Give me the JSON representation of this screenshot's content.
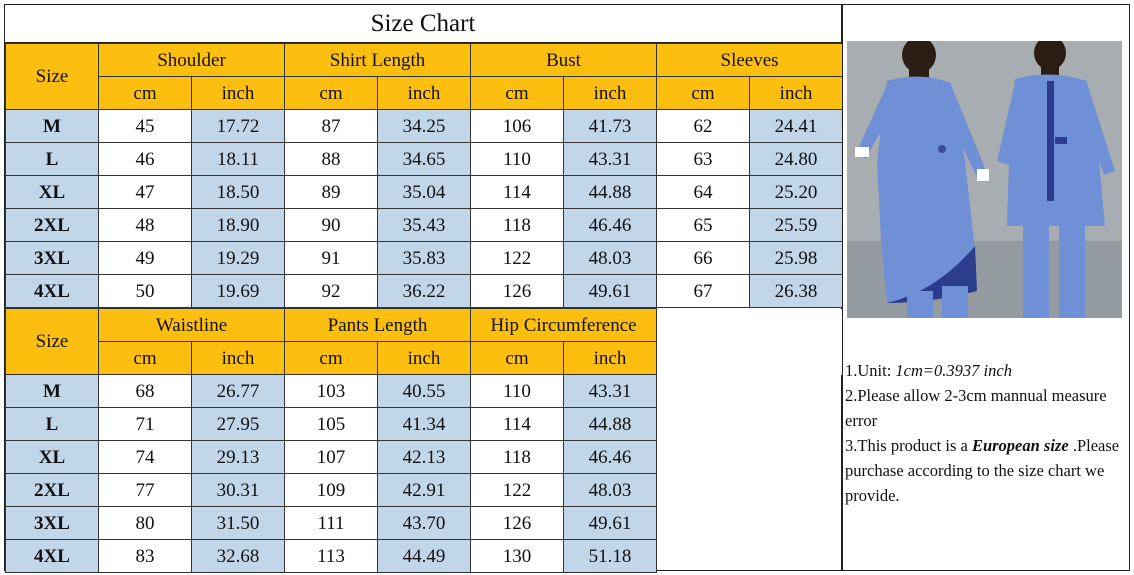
{
  "title": "Size Chart",
  "colors": {
    "header": "#fdbf0f",
    "alt_cell": "#c2d6ea",
    "garment": "#6f8fd6"
  },
  "table1": {
    "size_label": "Size",
    "groups": [
      "Shoulder",
      "Shirt Length",
      "Bust",
      "Sleeves"
    ],
    "units": [
      "cm",
      "inch",
      "cm",
      "inch",
      "cm",
      "inch",
      "cm",
      "inch"
    ],
    "rows": [
      [
        "M",
        "45",
        "17.72",
        "87",
        "34.25",
        "106",
        "41.73",
        "62",
        "24.41"
      ],
      [
        "L",
        "46",
        "18.11",
        "88",
        "34.65",
        "110",
        "43.31",
        "63",
        "24.80"
      ],
      [
        "XL",
        "47",
        "18.50",
        "89",
        "35.04",
        "114",
        "44.88",
        "64",
        "25.20"
      ],
      [
        "2XL",
        "48",
        "18.90",
        "90",
        "35.43",
        "118",
        "46.46",
        "65",
        "25.59"
      ],
      [
        "3XL",
        "49",
        "19.29",
        "91",
        "35.83",
        "122",
        "48.03",
        "66",
        "25.98"
      ],
      [
        "4XL",
        "50",
        "19.69",
        "92",
        "36.22",
        "126",
        "49.61",
        "67",
        "26.38"
      ]
    ]
  },
  "table2": {
    "size_label": "Size",
    "groups": [
      "Waistline",
      "Pants Length",
      "Hip Circumference"
    ],
    "units": [
      "cm",
      "inch",
      "cm",
      "inch",
      "cm",
      "inch"
    ],
    "rows": [
      [
        "M",
        "68",
        "26.77",
        "103",
        "40.55",
        "110",
        "43.31"
      ],
      [
        "L",
        "71",
        "27.95",
        "105",
        "41.34",
        "114",
        "44.88"
      ],
      [
        "XL",
        "74",
        "29.13",
        "107",
        "42.13",
        "118",
        "46.46"
      ],
      [
        "2XL",
        "77",
        "30.31",
        "109",
        "42.91",
        "122",
        "48.03"
      ],
      [
        "3XL",
        "80",
        "31.50",
        "111",
        "43.70",
        "126",
        "49.61"
      ],
      [
        "4XL",
        "83",
        "32.68",
        "113",
        "44.49",
        "130",
        "51.18"
      ]
    ]
  },
  "notes": {
    "note1_prefix": "1.Unit: ",
    "note1_value": "1cm=0.3937 inch",
    "note2": "2.Please allow 2-3cm mannual measure error",
    "note3_prefix": "3.This product is a ",
    "note3_emph": "European size",
    "note3_suffix": " .Please purchase according to the size chart we provide."
  }
}
